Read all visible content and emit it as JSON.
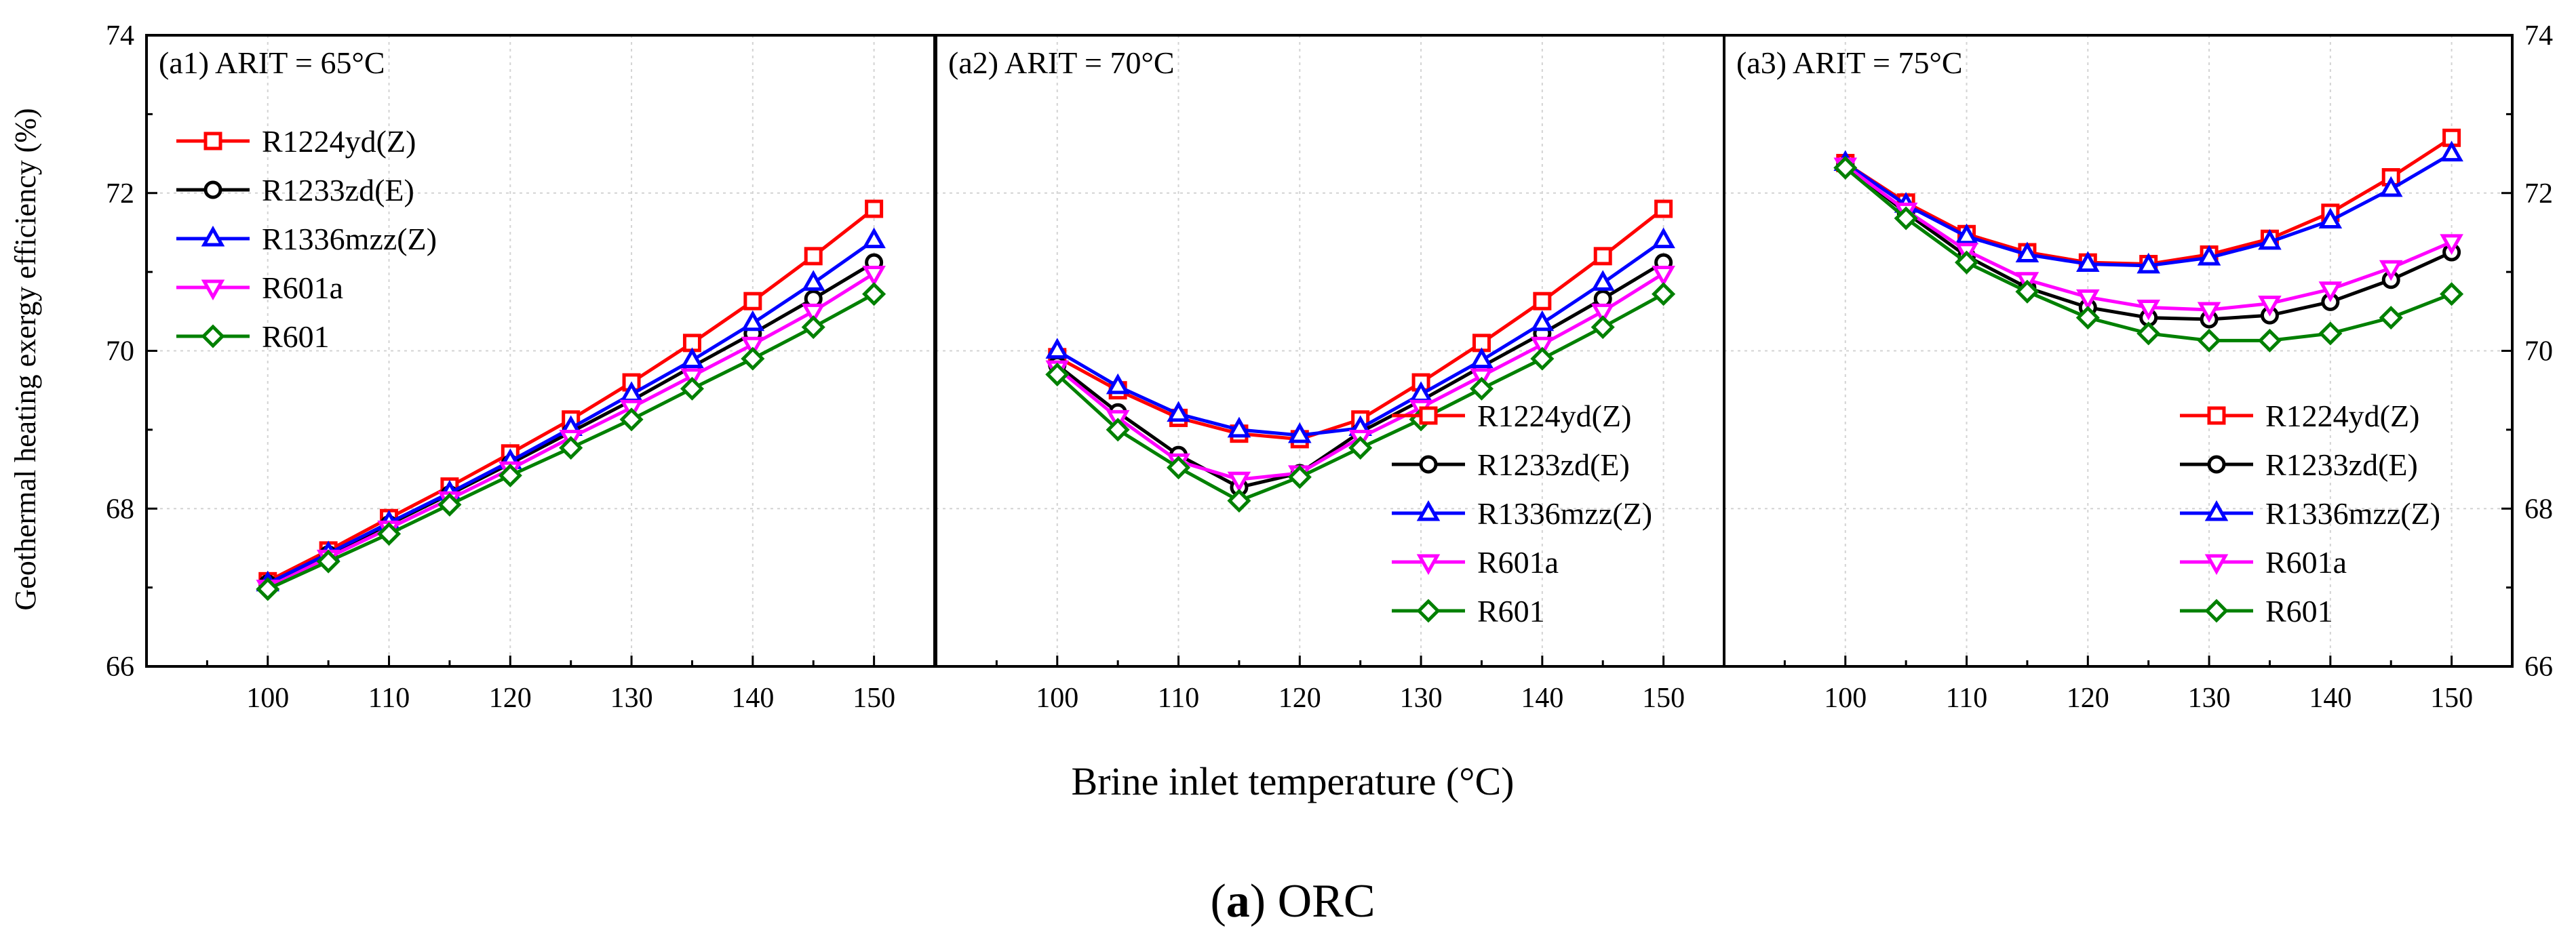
{
  "figure": {
    "xlabel": "Brine inlet temperature (°C)",
    "ylabel": "Geothermal heating exergy efficiency (%)",
    "caption_letter": "a",
    "caption_rest": " ORC",
    "caption_open": "(",
    "caption_close": ")"
  },
  "series_styles": [
    {
      "name": "R1224yd(Z)",
      "color": "#ff0000",
      "marker": "square"
    },
    {
      "name": "R1233zd(E)",
      "color": "#000000",
      "marker": "circle"
    },
    {
      "name": "R1336mzz(Z)",
      "color": "#0000ff",
      "marker": "triangle-up"
    },
    {
      "name": "R601a",
      "color": "#ff00ff",
      "marker": "triangle-down"
    },
    {
      "name": "R601",
      "color": "#008000",
      "marker": "diamond"
    }
  ],
  "chart_data": [
    {
      "type": "line",
      "title": "(a1) ARIT = 65°C",
      "x": [
        100,
        105,
        110,
        115,
        120,
        125,
        130,
        135,
        140,
        145,
        150
      ],
      "xlim": [
        90,
        155
      ],
      "ylim": [
        66,
        74
      ],
      "xticks": [
        100,
        110,
        120,
        130,
        140,
        150
      ],
      "yticks": [
        66,
        68,
        70,
        72,
        74
      ],
      "grid": true,
      "legend_position": "top-left",
      "series": [
        {
          "name": "R1224yd(Z)",
          "values": [
            67.08,
            67.47,
            67.88,
            68.28,
            68.7,
            69.13,
            69.6,
            70.1,
            70.63,
            71.2,
            71.8
          ]
        },
        {
          "name": "R1233zd(E)",
          "values": [
            67.05,
            67.42,
            67.8,
            68.18,
            68.57,
            68.97,
            69.37,
            69.8,
            70.22,
            70.66,
            71.12
          ]
        },
        {
          "name": "R1336mzz(Z)",
          "values": [
            67.05,
            67.43,
            67.82,
            68.2,
            68.6,
            69.02,
            69.45,
            69.88,
            70.35,
            70.86,
            71.4
          ]
        },
        {
          "name": "R601a",
          "values": [
            67.0,
            67.38,
            67.75,
            68.12,
            68.5,
            68.9,
            69.28,
            69.68,
            70.08,
            70.5,
            70.98
          ]
        },
        {
          "name": "R601",
          "values": [
            66.98,
            67.33,
            67.68,
            68.05,
            68.42,
            68.77,
            69.13,
            69.52,
            69.9,
            70.3,
            70.72
          ]
        }
      ]
    },
    {
      "type": "line",
      "title": "(a2) ARIT = 70°C",
      "x": [
        100,
        105,
        110,
        115,
        120,
        125,
        130,
        135,
        140,
        145,
        150
      ],
      "xlim": [
        90,
        155
      ],
      "ylim": [
        66,
        74
      ],
      "xticks": [
        100,
        110,
        120,
        130,
        140,
        150
      ],
      "yticks": [
        66,
        68,
        70,
        72,
        74
      ],
      "grid": true,
      "legend_position": "bottom-right",
      "series": [
        {
          "name": "R1224yd(Z)",
          "values": [
            69.92,
            69.5,
            69.15,
            68.95,
            68.88,
            69.13,
            69.6,
            70.1,
            70.63,
            71.2,
            71.8
          ]
        },
        {
          "name": "R1233zd(E)",
          "values": [
            69.82,
            69.22,
            68.68,
            68.27,
            68.45,
            68.97,
            69.37,
            69.8,
            70.22,
            70.66,
            71.12
          ]
        },
        {
          "name": "R1336mzz(Z)",
          "values": [
            70.0,
            69.55,
            69.2,
            69.0,
            68.93,
            69.02,
            69.45,
            69.88,
            70.35,
            70.86,
            71.4
          ]
        },
        {
          "name": "R601a",
          "values": [
            69.78,
            69.15,
            68.6,
            68.37,
            68.45,
            68.9,
            69.28,
            69.68,
            70.08,
            70.5,
            70.98
          ]
        },
        {
          "name": "R601",
          "values": [
            69.7,
            69.0,
            68.52,
            68.1,
            68.4,
            68.77,
            69.13,
            69.52,
            69.9,
            70.3,
            70.72
          ]
        }
      ]
    },
    {
      "type": "line",
      "title": "(a3) ARIT = 75°C",
      "x": [
        100,
        105,
        110,
        115,
        120,
        125,
        130,
        135,
        140,
        145,
        150
      ],
      "xlim": [
        90,
        155
      ],
      "ylim": [
        66,
        74
      ],
      "xticks": [
        100,
        110,
        120,
        130,
        140,
        150
      ],
      "yticks": [
        66,
        68,
        70,
        72,
        74
      ],
      "grid": true,
      "legend_position": "bottom-right",
      "series": [
        {
          "name": "R1224yd(Z)",
          "values": [
            72.38,
            71.88,
            71.48,
            71.25,
            71.12,
            71.1,
            71.22,
            71.42,
            71.75,
            72.2,
            72.7
          ]
        },
        {
          "name": "R1233zd(E)",
          "values": [
            72.35,
            71.75,
            71.2,
            70.8,
            70.55,
            70.42,
            70.4,
            70.45,
            70.62,
            70.9,
            71.25
          ]
        },
        {
          "name": "R1336mzz(Z)",
          "values": [
            72.38,
            71.85,
            71.45,
            71.22,
            71.1,
            71.08,
            71.18,
            71.38,
            71.65,
            72.05,
            72.5
          ]
        },
        {
          "name": "R601a",
          "values": [
            72.35,
            71.78,
            71.27,
            70.9,
            70.68,
            70.55,
            70.52,
            70.6,
            70.78,
            71.05,
            71.38
          ]
        },
        {
          "name": "R601",
          "values": [
            72.32,
            71.68,
            71.12,
            70.75,
            70.42,
            70.22,
            70.13,
            70.13,
            70.22,
            70.42,
            70.72
          ]
        }
      ]
    }
  ]
}
